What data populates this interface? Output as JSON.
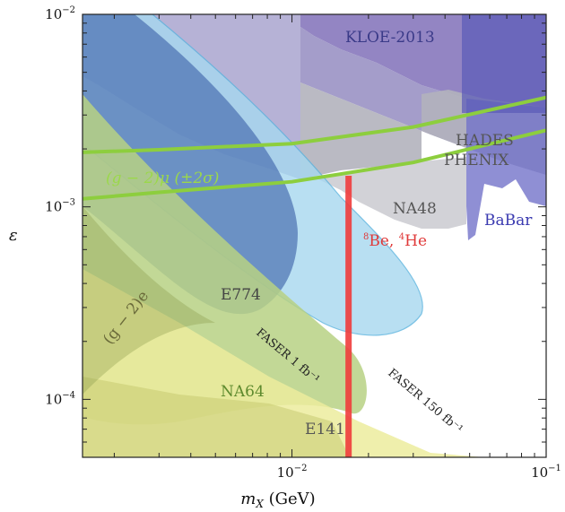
{
  "chart_data": {
    "type": "area",
    "title": "",
    "xlabel": "m_X (GeV)",
    "ylabel": "ε",
    "x_scale": "log",
    "y_scale": "log",
    "xlim": [
      0.0015,
      0.1
    ],
    "ylim": [
      5e-05,
      0.01
    ],
    "x_ticks": [
      {
        "value": 0.01,
        "base": "10",
        "exp": "−2"
      },
      {
        "value": 0.1,
        "base": "10",
        "exp": "−1"
      }
    ],
    "y_ticks": [
      {
        "value": 0.0001,
        "base": "10",
        "exp": "−4"
      },
      {
        "value": 0.001,
        "base": "10",
        "exp": "−3"
      },
      {
        "value": 0.01,
        "base": "10",
        "exp": "−2"
      }
    ],
    "x_label_parts": {
      "main": "m",
      "sub": "X",
      "unit": " (GeV)"
    },
    "y_label_symbol": "ε",
    "colors": {
      "kloe": "#8070b8",
      "babar": "#6a6ac8",
      "hades": "#a8a8b4",
      "na48": "#cfcfd4",
      "blue_region": "#4a6fb0",
      "cyan_region": "#a7d8f0",
      "green_region": "#b7d184",
      "yellow_region": "#ecec9e",
      "green_band": "#8dce3e",
      "red_line": "#f03c3c"
    },
    "regions": [
      {
        "name": "KLOE-2013",
        "label": "KLOE-2013"
      },
      {
        "name": "HADES",
        "label": "HADES"
      },
      {
        "name": "PHENIX",
        "label": "PHENIX"
      },
      {
        "name": "NA48",
        "label": "NA48"
      },
      {
        "name": "BaBar",
        "label": "BaBar"
      },
      {
        "name": "E774",
        "label": "E774"
      },
      {
        "name": "NA64",
        "label": "NA64"
      },
      {
        "name": "E141",
        "label": "E141"
      },
      {
        "name": "(g-2)e",
        "label": "(g − 2)e"
      },
      {
        "name": "FASER 1",
        "label": "FASER 1 fb⁻¹"
      },
      {
        "name": "FASER 150",
        "label": "FASER 150 fb⁻¹"
      }
    ],
    "g2mu_label": "(g − 2)μ (±2σ)",
    "g2mu_band": {
      "lower": {
        "x": [
          0.0015,
          0.003,
          0.01,
          0.03,
          0.1
        ],
        "y": [
          0.0011,
          0.00119,
          0.00135,
          0.0017,
          0.0025
        ]
      },
      "upper": {
        "x": [
          0.0015,
          0.003,
          0.01,
          0.03,
          0.1
        ],
        "y": [
          0.00192,
          0.00198,
          0.00213,
          0.0026,
          0.0037
        ]
      }
    },
    "be8_line": {
      "label_parts": {
        "sup1": "8",
        "el1": "Be, ",
        "sup2": "4",
        "el2": "He"
      },
      "x": 0.0167,
      "y_range": [
        5e-05,
        0.00145
      ]
    }
  }
}
